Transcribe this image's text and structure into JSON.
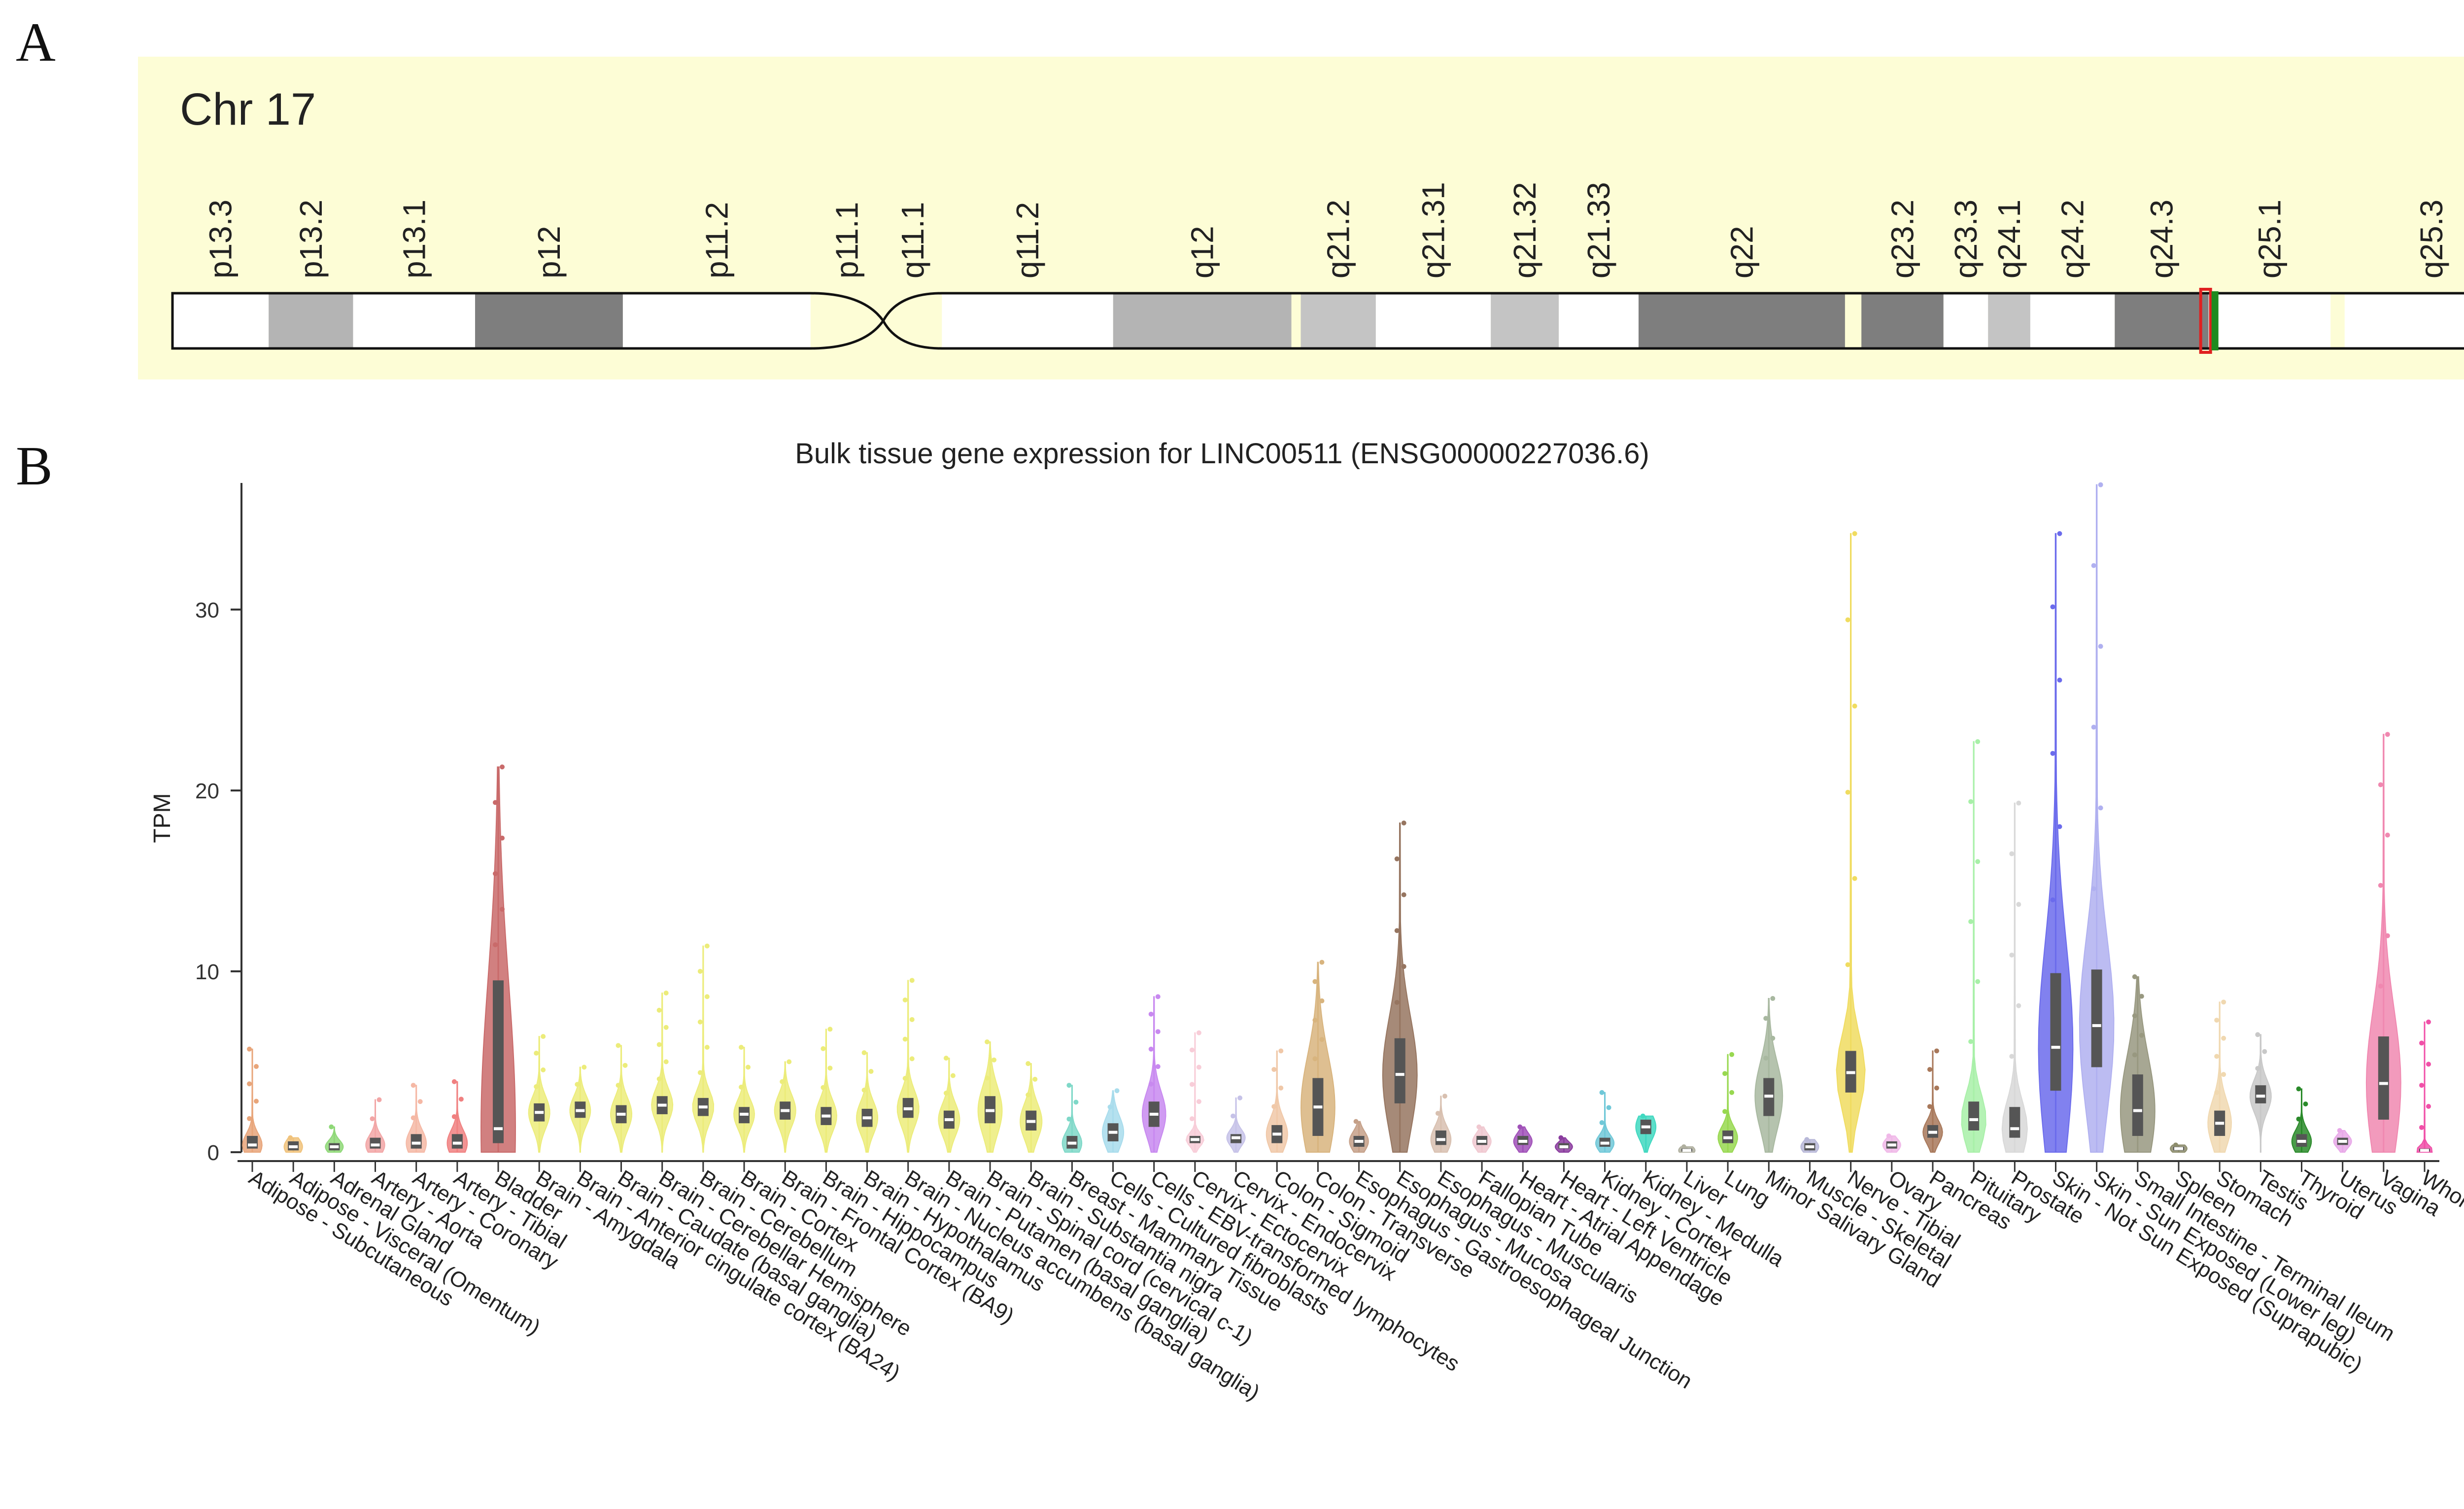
{
  "panel_labels": {
    "a": "A",
    "b": "B"
  },
  "ideogram": {
    "chromosome": "Chr 17",
    "background": "#fdfdd6",
    "bands": [
      {
        "name": "p13.3",
        "from": 0.0,
        "to": 0.041,
        "stain": "gneg"
      },
      {
        "name": "p13.2",
        "from": 0.041,
        "to": 0.077,
        "stain": "gpos50"
      },
      {
        "name": "p13.1",
        "from": 0.077,
        "to": 0.129,
        "stain": "gneg"
      },
      {
        "name": "p12",
        "from": 0.129,
        "to": 0.192,
        "stain": "gpos75"
      },
      {
        "name": "p11.2",
        "from": 0.192,
        "to": 0.272,
        "stain": "gneg"
      },
      {
        "name": "p11.1",
        "from": 0.272,
        "to": 0.303,
        "stain": "acen"
      },
      {
        "name": "q11.1",
        "from": 0.303,
        "to": 0.328,
        "stain": "acen"
      },
      {
        "name": "q11.2",
        "from": 0.328,
        "to": 0.401,
        "stain": "gneg"
      },
      {
        "name": "q12",
        "from": 0.401,
        "to": 0.477,
        "stain": "gpos50"
      },
      {
        "name": "q21.2",
        "from": 0.481,
        "to": 0.513,
        "stain": "gpos25"
      },
      {
        "name": "q21.31",
        "from": 0.513,
        "to": 0.562,
        "stain": "gneg"
      },
      {
        "name": "q21.32",
        "from": 0.562,
        "to": 0.591,
        "stain": "gpos25"
      },
      {
        "name": "q21.33",
        "from": 0.591,
        "to": 0.625,
        "stain": "gneg"
      },
      {
        "name": "q22",
        "from": 0.625,
        "to": 0.713,
        "stain": "gpos75"
      },
      {
        "name": "q23.2",
        "from": 0.72,
        "to": 0.755,
        "stain": "gpos75"
      },
      {
        "name": "q23.3",
        "from": 0.755,
        "to": 0.774,
        "stain": "gneg"
      },
      {
        "name": "q24.1",
        "from": 0.774,
        "to": 0.792,
        "stain": "gpos25"
      },
      {
        "name": "q24.2",
        "from": 0.792,
        "to": 0.828,
        "stain": "gneg"
      },
      {
        "name": "q24.3",
        "from": 0.828,
        "to": 0.868,
        "stain": "gpos75"
      },
      {
        "name": "q25.1",
        "from": 0.868,
        "to": 0.92,
        "stain": "gneg"
      },
      {
        "name": "q25.3",
        "from": 0.926,
        "to": 1.0,
        "stain": "gneg"
      }
    ],
    "gene_marker_position": 0.868
  },
  "chart_data": {
    "type": "violin",
    "title": "Bulk tissue gene expression for LINC00511 (ENSG00000227036.6)",
    "ylabel": "TPM",
    "ylim": [
      0,
      37
    ],
    "yticks": [
      0,
      10,
      20,
      30
    ],
    "grid": false,
    "categories": [
      {
        "name": "Adipose - Subcutaneous",
        "color": "#e8a57a",
        "median": 0.4,
        "q1": 0.2,
        "q3": 0.9,
        "max": 5.7
      },
      {
        "name": "Adipose - Visceral (Omentum)",
        "color": "#f0c27b",
        "median": 0.3,
        "q1": 0.1,
        "q3": 0.6,
        "max": 0.8
      },
      {
        "name": "Adrenal Gland",
        "color": "#8fd878",
        "median": 0.3,
        "q1": 0.1,
        "q3": 0.5,
        "max": 1.4
      },
      {
        "name": "Artery - Aorta",
        "color": "#f2a6a6",
        "median": 0.4,
        "q1": 0.2,
        "q3": 0.8,
        "max": 2.9
      },
      {
        "name": "Artery - Coronary",
        "color": "#f5b8a5",
        "median": 0.5,
        "q1": 0.2,
        "q3": 1.0,
        "max": 3.7
      },
      {
        "name": "Artery - Tibial",
        "color": "#f08080",
        "median": 0.5,
        "q1": 0.2,
        "q3": 1.0,
        "max": 3.9
      },
      {
        "name": "Bladder",
        "color": "#c96a6a",
        "median": 1.3,
        "q1": 0.5,
        "q3": 9.5,
        "max": 21.3
      },
      {
        "name": "Brain - Amygdala",
        "color": "#ecec7a",
        "median": 2.2,
        "q1": 1.7,
        "q3": 2.7,
        "max": 6.4
      },
      {
        "name": "Brain - Anterior cingulate cortex (BA24)",
        "color": "#ecec7a",
        "median": 2.3,
        "q1": 1.9,
        "q3": 2.8,
        "max": 4.7
      },
      {
        "name": "Brain - Caudate (basal ganglia)",
        "color": "#ecec7a",
        "median": 2.1,
        "q1": 1.6,
        "q3": 2.6,
        "max": 5.9
      },
      {
        "name": "Brain - Cerebellar Hemisphere",
        "color": "#ecec7a",
        "median": 2.6,
        "q1": 2.1,
        "q3": 3.1,
        "max": 8.8
      },
      {
        "name": "Brain - Cerebellum",
        "color": "#ecec7a",
        "median": 2.5,
        "q1": 2.0,
        "q3": 3.0,
        "max": 11.4
      },
      {
        "name": "Brain - Cortex",
        "color": "#ecec7a",
        "median": 2.1,
        "q1": 1.6,
        "q3": 2.5,
        "max": 5.8
      },
      {
        "name": "Brain - Frontal Cortex (BA9)",
        "color": "#ecec7a",
        "median": 2.3,
        "q1": 1.8,
        "q3": 2.8,
        "max": 5.0
      },
      {
        "name": "Brain - Hippocampus",
        "color": "#ecec7a",
        "median": 2.0,
        "q1": 1.5,
        "q3": 2.5,
        "max": 6.8
      },
      {
        "name": "Brain - Hypothalamus",
        "color": "#ecec7a",
        "median": 1.9,
        "q1": 1.4,
        "q3": 2.4,
        "max": 5.5
      },
      {
        "name": "Brain - Nucleus accumbens (basal ganglia)",
        "color": "#ecec7a",
        "median": 2.4,
        "q1": 1.9,
        "q3": 3.0,
        "max": 9.5
      },
      {
        "name": "Brain - Putamen (basal ganglia)",
        "color": "#ecec7a",
        "median": 1.8,
        "q1": 1.3,
        "q3": 2.3,
        "max": 5.2
      },
      {
        "name": "Brain - Spinal cord (cervical c-1)",
        "color": "#ecec7a",
        "median": 2.3,
        "q1": 1.6,
        "q3": 3.1,
        "max": 6.1
      },
      {
        "name": "Brain - Substantia nigra",
        "color": "#ecec7a",
        "median": 1.7,
        "q1": 1.2,
        "q3": 2.3,
        "max": 4.9
      },
      {
        "name": "Breast - Mammary Tissue",
        "color": "#7fd8c8",
        "median": 0.5,
        "q1": 0.2,
        "q3": 0.9,
        "max": 3.7
      },
      {
        "name": "Cells - Cultured fibroblasts",
        "color": "#a8dcec",
        "median": 1.1,
        "q1": 0.6,
        "q3": 1.6,
        "max": 3.4
      },
      {
        "name": "Cells - EBV-transformed lymphocytes",
        "color": "#c889f0",
        "median": 2.1,
        "q1": 1.4,
        "q3": 2.8,
        "max": 8.6
      },
      {
        "name": "Cervix - Ectocervix",
        "color": "#f8cdd8",
        "median": 0.7,
        "q1": 0.5,
        "q3": 0.9,
        "max": 6.6
      },
      {
        "name": "Cervix - Endocervix",
        "color": "#c6c2e8",
        "median": 0.8,
        "q1": 0.5,
        "q3": 1.0,
        "max": 3.0
      },
      {
        "name": "Colon - Sigmoid",
        "color": "#f0c8a8",
        "median": 1.0,
        "q1": 0.5,
        "q3": 1.5,
        "max": 5.6
      },
      {
        "name": "Colon - Transverse",
        "color": "#d8b47e",
        "median": 2.5,
        "q1": 0.9,
        "q3": 4.1,
        "max": 10.5
      },
      {
        "name": "Esophagus - Gastroesophageal Junction",
        "color": "#c5a088",
        "median": 0.6,
        "q1": 0.3,
        "q3": 0.9,
        "max": 1.7
      },
      {
        "name": "Esophagus - Mucosa",
        "color": "#967560",
        "median": 4.3,
        "q1": 2.7,
        "q3": 6.3,
        "max": 18.2
      },
      {
        "name": "Esophagus - Muscularis",
        "color": "#d8c0b0",
        "median": 0.7,
        "q1": 0.4,
        "q3": 1.2,
        "max": 3.1
      },
      {
        "name": "Fallopian Tube",
        "color": "#f0c8d0",
        "median": 0.6,
        "q1": 0.4,
        "q3": 0.9,
        "max": 1.4
      },
      {
        "name": "Heart - Atrial Appendage",
        "color": "#a050b8",
        "median": 0.6,
        "q1": 0.4,
        "q3": 0.9,
        "max": 1.4
      },
      {
        "name": "Heart - Left Ventricle",
        "color": "#8a3c9e",
        "median": 0.3,
        "q1": 0.2,
        "q3": 0.5,
        "max": 0.8
      },
      {
        "name": "Kidney - Cortex",
        "color": "#70c8d8",
        "median": 0.5,
        "q1": 0.3,
        "q3": 0.8,
        "max": 3.3
      },
      {
        "name": "Kidney - Medulla",
        "color": "#40d8c0",
        "median": 1.4,
        "q1": 1.0,
        "q3": 1.8,
        "max": 2.0
      },
      {
        "name": "Liver",
        "color": "#b0b0a0",
        "median": 0.1,
        "q1": 0.05,
        "q3": 0.2,
        "max": 0.3
      },
      {
        "name": "Lung",
        "color": "#98d850",
        "median": 0.8,
        "q1": 0.5,
        "q3": 1.2,
        "max": 5.4
      },
      {
        "name": "Minor Salivary Gland",
        "color": "#a8b8a0",
        "median": 3.1,
        "q1": 2.0,
        "q3": 4.1,
        "max": 8.5
      },
      {
        "name": "Muscle - Skeletal",
        "color": "#b8b8d8",
        "median": 0.3,
        "q1": 0.1,
        "q3": 0.5,
        "max": 0.7
      },
      {
        "name": "Nerve - Tibial",
        "color": "#f0dc60",
        "median": 4.4,
        "q1": 3.3,
        "q3": 5.6,
        "max": 34.2
      },
      {
        "name": "Ovary",
        "color": "#f0b8e8",
        "median": 0.4,
        "q1": 0.2,
        "q3": 0.6,
        "max": 0.9
      },
      {
        "name": "Pancreas",
        "color": "#a8785a",
        "median": 1.1,
        "q1": 0.8,
        "q3": 1.5,
        "max": 5.6
      },
      {
        "name": "Pituitary",
        "color": "#a8f0a8",
        "median": 1.8,
        "q1": 1.2,
        "q3": 2.8,
        "max": 22.7
      },
      {
        "name": "Prostate",
        "color": "#d8d8d8",
        "median": 1.3,
        "q1": 0.8,
        "q3": 2.5,
        "max": 19.3
      },
      {
        "name": "Skin - Not Sun Exposed (Suprapubic)",
        "color": "#6b6bec",
        "median": 5.8,
        "q1": 3.4,
        "q3": 9.9,
        "max": 34.2
      },
      {
        "name": "Skin - Sun Exposed (Lower leg)",
        "color": "#b0b0f0",
        "median": 7.0,
        "q1": 4.7,
        "q3": 10.1,
        "max": 36.9
      },
      {
        "name": "Small Intestine - Terminal Ileum",
        "color": "#989880",
        "median": 2.3,
        "q1": 0.9,
        "q3": 4.3,
        "max": 9.7
      },
      {
        "name": "Spleen",
        "color": "#8c8c6c",
        "median": 0.2,
        "q1": 0.1,
        "q3": 0.3,
        "max": 0.4
      },
      {
        "name": "Stomach",
        "color": "#f0d8b0",
        "median": 1.6,
        "q1": 0.9,
        "q3": 2.3,
        "max": 8.3
      },
      {
        "name": "Testis",
        "color": "#c8c8c8",
        "median": 3.1,
        "q1": 2.7,
        "q3": 3.7,
        "max": 6.5
      },
      {
        "name": "Thyroid",
        "color": "#2a8a2a",
        "median": 0.6,
        "q1": 0.3,
        "q3": 1.0,
        "max": 3.5
      },
      {
        "name": "Uterus",
        "color": "#e8a8e8",
        "median": 0.6,
        "q1": 0.4,
        "q3": 0.8,
        "max": 1.2
      },
      {
        "name": "Vagina",
        "color": "#f088b0",
        "median": 3.8,
        "q1": 1.8,
        "q3": 6.4,
        "max": 23.1
      },
      {
        "name": "Whole Blood",
        "color": "#f050a8",
        "median": 0.1,
        "q1": 0.05,
        "q3": 0.2,
        "max": 7.2
      }
    ]
  }
}
